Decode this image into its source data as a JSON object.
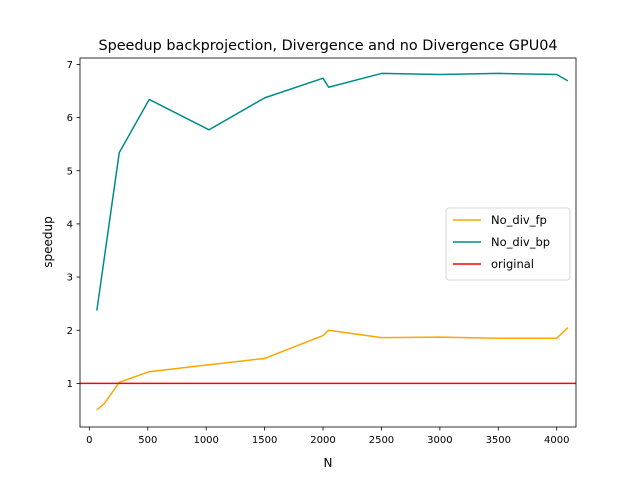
{
  "chart_data": {
    "type": "line",
    "title": "Speedup backprojection, Divergence and no Divergence GPU04",
    "xlabel": "N",
    "ylabel": "speedup",
    "xlim": [
      -80,
      4165
    ],
    "ylim": [
      0.18,
      7.12
    ],
    "xticks": [
      0,
      500,
      1000,
      1500,
      2000,
      2500,
      3000,
      3500,
      4000
    ],
    "xtick_labels": [
      "0",
      "500",
      "1000",
      "1500",
      "2000",
      "2500",
      "3000",
      "3500",
      "4000"
    ],
    "yticks": [
      1,
      2,
      3,
      4,
      5,
      6,
      7
    ],
    "ytick_labels": [
      "1",
      "2",
      "3",
      "4",
      "5",
      "6",
      "7"
    ],
    "grid": false,
    "legend_position": "center-right",
    "series": [
      {
        "name": "No_div_fp",
        "color": "#ffa500",
        "x": [
          64,
          128,
          256,
          512,
          1024,
          1500,
          2000,
          2048,
          2500,
          3000,
          3500,
          4000,
          4096
        ],
        "y": [
          0.5,
          0.62,
          1.02,
          1.22,
          1.35,
          1.47,
          1.9,
          2.0,
          1.86,
          1.87,
          1.85,
          1.85,
          2.05
        ]
      },
      {
        "name": "No_div_bp",
        "color": "#008b8b",
        "x": [
          64,
          256,
          512,
          1024,
          1500,
          2000,
          2048,
          2500,
          3000,
          3500,
          4000,
          4096
        ],
        "y": [
          2.37,
          5.34,
          6.34,
          5.77,
          6.37,
          6.74,
          6.57,
          6.83,
          6.81,
          6.83,
          6.81,
          6.69
        ]
      }
    ],
    "hlines": [
      {
        "name": "original",
        "color": "#ff0000",
        "y": 1
      }
    ]
  }
}
